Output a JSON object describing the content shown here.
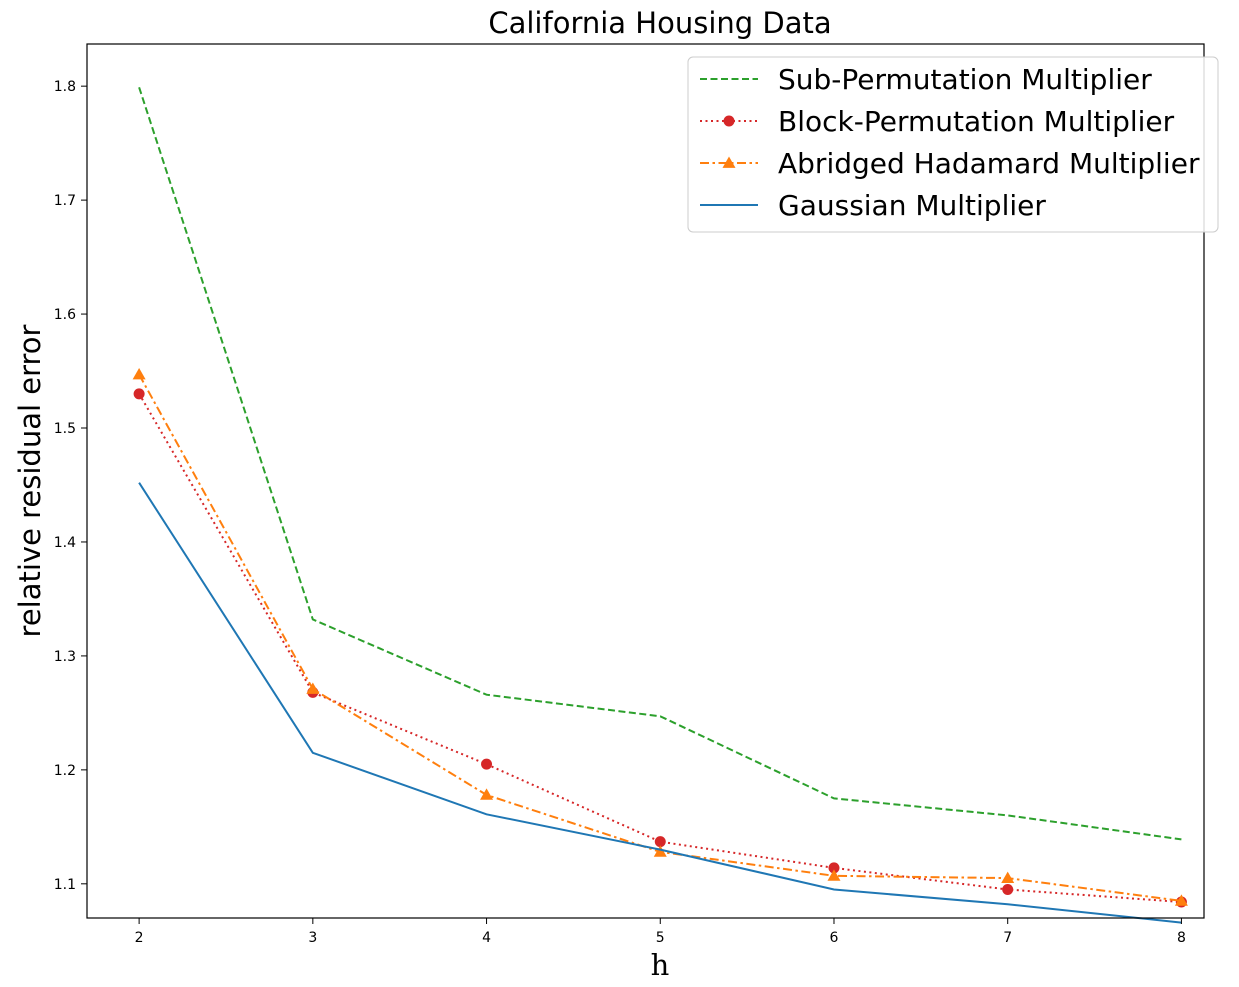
{
  "chart_data": {
    "type": "line",
    "title": "California Housing Data",
    "xlabel": "h",
    "ylabel": "relative residual error",
    "x": [
      2,
      3,
      4,
      5,
      6,
      7,
      8
    ],
    "xlim": [
      1.7,
      8.13
    ],
    "ylim": [
      1.07,
      1.837
    ],
    "xticks": [
      "2",
      "3",
      "4",
      "5",
      "6",
      "7",
      "8"
    ],
    "yticks": [
      "1.1",
      "1.2",
      "1.3",
      "1.4",
      "1.5",
      "1.6",
      "1.7",
      "1.8"
    ],
    "grid": false,
    "legend_position": "upper right",
    "series": [
      {
        "name": "Sub-Permutation Multiplier",
        "color": "#2ca02c",
        "line_style": "dashed",
        "marker": "none",
        "values": [
          1.799,
          1.332,
          1.266,
          1.247,
          1.175,
          1.16,
          1.139
        ]
      },
      {
        "name": "Block-Permutation Multiplier",
        "color": "#d62728",
        "line_style": "dotted",
        "marker": "circle",
        "values": [
          1.53,
          1.268,
          1.205,
          1.137,
          1.114,
          1.095,
          1.084
        ]
      },
      {
        "name": "Abridged Hadamard Multiplier",
        "color": "#ff7f0e",
        "line_style": "dash-dot",
        "marker": "triangle",
        "values": [
          1.547,
          1.271,
          1.178,
          1.128,
          1.107,
          1.105,
          1.085
        ]
      },
      {
        "name": "Gaussian Multiplier",
        "color": "#1f77b4",
        "line_style": "solid",
        "marker": "none",
        "values": [
          1.452,
          1.215,
          1.161,
          1.13,
          1.095,
          1.082,
          1.066
        ]
      }
    ]
  }
}
